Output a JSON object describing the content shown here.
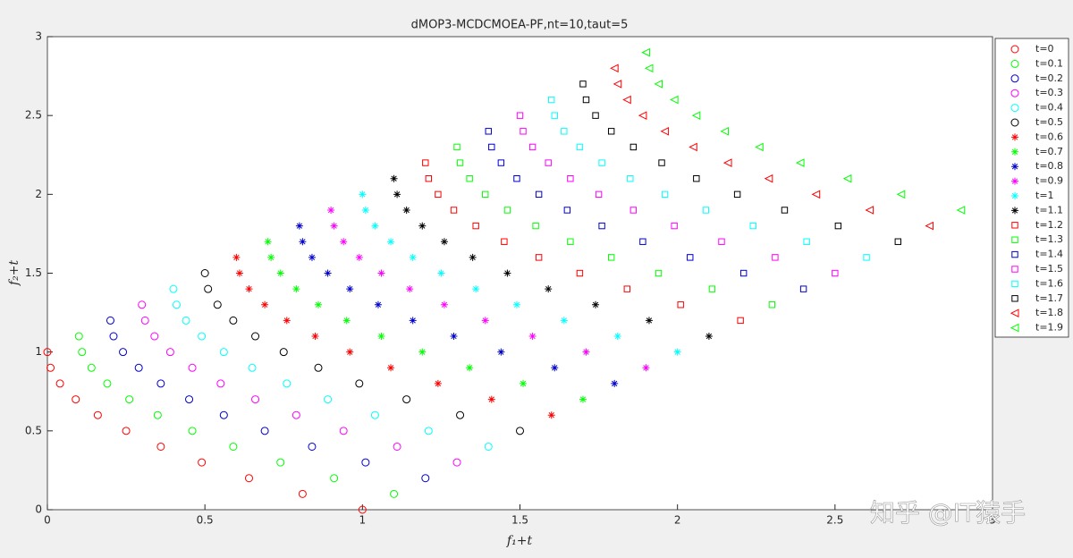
{
  "chart_data": {
    "type": "scatter",
    "title": "dMOP3-MCDCMOEA-PF,nt=10,taut=5",
    "xlabel": "f₁+t",
    "ylabel": "f₂+t",
    "watermark": "知乎 @IT猿手",
    "xlim": [
      0,
      3
    ],
    "ylim": [
      0,
      3
    ],
    "xticks": [
      0,
      0.5,
      1,
      1.5,
      2,
      2.5,
      3
    ],
    "yticks": [
      0,
      0.5,
      1,
      1.5,
      2,
      2.5,
      3
    ],
    "legend": "outside-right",
    "series": [
      {
        "name": "t=0",
        "color": "#ff0000",
        "marker": "o",
        "x": [
          0,
          0.01,
          0.04,
          0.09,
          0.16,
          0.25,
          0.36,
          0.49,
          0.64,
          0.81,
          1
        ],
        "values": [
          1,
          0.9,
          0.8,
          0.7,
          0.6,
          0.5,
          0.4,
          0.3,
          0.2,
          0.1,
          0
        ]
      },
      {
        "name": "t=0.1",
        "color": "#00ff00",
        "marker": "o",
        "x": [
          0.1,
          0.11,
          0.14,
          0.19,
          0.26,
          0.35,
          0.46,
          0.59,
          0.74,
          0.91,
          1.1
        ],
        "values": [
          1.1,
          1,
          0.9,
          0.8,
          0.7,
          0.6,
          0.5,
          0.4,
          0.3,
          0.2,
          0.1
        ]
      },
      {
        "name": "t=0.2",
        "color": "#0000cc",
        "marker": "o",
        "x": [
          0.2,
          0.21,
          0.24,
          0.29,
          0.36,
          0.45,
          0.56,
          0.69,
          0.84,
          1.01,
          1.2
        ],
        "values": [
          1.2,
          1.1,
          1,
          0.9,
          0.8,
          0.7,
          0.6,
          0.5,
          0.4,
          0.3,
          0.2
        ]
      },
      {
        "name": "t=0.3",
        "color": "#ff00ff",
        "marker": "o",
        "x": [
          0.3,
          0.31,
          0.34,
          0.39,
          0.46,
          0.55,
          0.66,
          0.79,
          0.94,
          1.11,
          1.3
        ],
        "values": [
          1.3,
          1.2,
          1.1,
          1,
          0.9,
          0.8,
          0.7,
          0.6,
          0.5,
          0.4,
          0.3
        ]
      },
      {
        "name": "t=0.4",
        "color": "#00ffff",
        "marker": "o",
        "x": [
          0.4,
          0.41,
          0.44,
          0.49,
          0.56,
          0.65,
          0.76,
          0.89,
          1.04,
          1.21,
          1.4
        ],
        "values": [
          1.4,
          1.3,
          1.2,
          1.1,
          1,
          0.9,
          0.8,
          0.7,
          0.6,
          0.5,
          0.4
        ]
      },
      {
        "name": "t=0.5",
        "color": "#000000",
        "marker": "o",
        "x": [
          0.5,
          0.51,
          0.54,
          0.59,
          0.66,
          0.75,
          0.86,
          0.99,
          1.14,
          1.31,
          1.5
        ],
        "values": [
          1.5,
          1.4,
          1.3,
          1.2,
          1.1,
          1,
          0.9,
          0.8,
          0.7,
          0.6,
          0.5
        ]
      },
      {
        "name": "t=0.6",
        "color": "#ff0000",
        "marker": "*",
        "x": [
          0.6,
          0.61,
          0.64,
          0.69,
          0.76,
          0.85,
          0.96,
          1.09,
          1.24,
          1.41,
          1.6
        ],
        "values": [
          1.6,
          1.5,
          1.4,
          1.3,
          1.2,
          1.1,
          1,
          0.9,
          0.8,
          0.7,
          0.6
        ]
      },
      {
        "name": "t=0.7",
        "color": "#00ff00",
        "marker": "*",
        "x": [
          0.7,
          0.71,
          0.74,
          0.79,
          0.86,
          0.95,
          1.06,
          1.19,
          1.34,
          1.51,
          1.7
        ],
        "values": [
          1.7,
          1.6,
          1.5,
          1.4,
          1.3,
          1.2,
          1.1,
          1,
          0.9,
          0.8,
          0.7
        ]
      },
      {
        "name": "t=0.8",
        "color": "#0000cc",
        "marker": "*",
        "x": [
          0.8,
          0.81,
          0.84,
          0.89,
          0.96,
          1.05,
          1.16,
          1.29,
          1.44,
          1.61,
          1.8
        ],
        "values": [
          1.8,
          1.7,
          1.6,
          1.5,
          1.4,
          1.3,
          1.2,
          1.1,
          1,
          0.9,
          0.8
        ]
      },
      {
        "name": "t=0.9",
        "color": "#ff00ff",
        "marker": "*",
        "x": [
          0.9,
          0.91,
          0.94,
          0.99,
          1.06,
          1.15,
          1.26,
          1.39,
          1.54,
          1.71,
          1.9
        ],
        "values": [
          1.9,
          1.8,
          1.7,
          1.6,
          1.5,
          1.4,
          1.3,
          1.2,
          1.1,
          1,
          0.9
        ]
      },
      {
        "name": "t=1",
        "color": "#00ffff",
        "marker": "*",
        "x": [
          1,
          1.01,
          1.04,
          1.09,
          1.16,
          1.25,
          1.36,
          1.49,
          1.64,
          1.81,
          2
        ],
        "values": [
          2,
          1.9,
          1.8,
          1.7,
          1.6,
          1.5,
          1.4,
          1.3,
          1.2,
          1.1,
          1
        ]
      },
      {
        "name": "t=1.1",
        "color": "#000000",
        "marker": "*",
        "x": [
          1.1,
          1.11,
          1.14,
          1.19,
          1.26,
          1.35,
          1.46,
          1.59,
          1.74,
          1.91,
          2.1
        ],
        "values": [
          2.1,
          2,
          1.9,
          1.8,
          1.7,
          1.6,
          1.5,
          1.4,
          1.3,
          1.2,
          1.1
        ]
      },
      {
        "name": "t=1.2",
        "color": "#ff0000",
        "marker": "s",
        "x": [
          1.2,
          1.21,
          1.24,
          1.29,
          1.36,
          1.45,
          1.56,
          1.69,
          1.84,
          2.01,
          2.2
        ],
        "values": [
          2.2,
          2.1,
          2,
          1.9,
          1.8,
          1.7,
          1.6,
          1.5,
          1.4,
          1.3,
          1.2
        ]
      },
      {
        "name": "t=1.3",
        "color": "#00ff00",
        "marker": "s",
        "x": [
          1.3,
          1.31,
          1.34,
          1.39,
          1.46,
          1.55,
          1.66,
          1.79,
          1.94,
          2.11,
          2.3
        ],
        "values": [
          2.3,
          2.2,
          2.1,
          2,
          1.9,
          1.8,
          1.7,
          1.6,
          1.5,
          1.4,
          1.3
        ]
      },
      {
        "name": "t=1.4",
        "color": "#0000cc",
        "marker": "s",
        "x": [
          1.4,
          1.41,
          1.44,
          1.49,
          1.56,
          1.65,
          1.76,
          1.89,
          2.04,
          2.21,
          2.4
        ],
        "values": [
          2.4,
          2.3,
          2.2,
          2.1,
          2,
          1.9,
          1.8,
          1.7,
          1.6,
          1.5,
          1.4
        ]
      },
      {
        "name": "t=1.5",
        "color": "#ff00ff",
        "marker": "s",
        "x": [
          1.5,
          1.51,
          1.54,
          1.59,
          1.66,
          1.75,
          1.86,
          1.99,
          2.14,
          2.31,
          2.5
        ],
        "values": [
          2.5,
          2.4,
          2.3,
          2.2,
          2.1,
          2,
          1.9,
          1.8,
          1.7,
          1.6,
          1.5
        ]
      },
      {
        "name": "t=1.6",
        "color": "#00ffff",
        "marker": "s",
        "x": [
          1.6,
          1.61,
          1.64,
          1.69,
          1.76,
          1.85,
          1.96,
          2.09,
          2.24,
          2.41,
          2.6
        ],
        "values": [
          2.6,
          2.5,
          2.4,
          2.3,
          2.2,
          2.1,
          2,
          1.9,
          1.8,
          1.7,
          1.6
        ]
      },
      {
        "name": "t=1.7",
        "color": "#000000",
        "marker": "s",
        "x": [
          1.7,
          1.71,
          1.74,
          1.79,
          1.86,
          1.95,
          2.06,
          2.19,
          2.34,
          2.51,
          2.7
        ],
        "values": [
          2.7,
          2.6,
          2.5,
          2.4,
          2.3,
          2.2,
          2.1,
          2,
          1.9,
          1.8,
          1.7
        ]
      },
      {
        "name": "t=1.8",
        "color": "#ff0000",
        "marker": "<",
        "x": [
          1.8,
          1.81,
          1.84,
          1.89,
          1.96,
          2.05,
          2.16,
          2.29,
          2.44,
          2.61,
          2.8
        ],
        "values": [
          2.8,
          2.7,
          2.6,
          2.5,
          2.4,
          2.3,
          2.2,
          2.1,
          2,
          1.9,
          1.8
        ]
      },
      {
        "name": "t=1.9",
        "color": "#00ff00",
        "marker": "<",
        "x": [
          1.9,
          1.91,
          1.94,
          1.99,
          2.06,
          2.15,
          2.26,
          2.39,
          2.54,
          2.71,
          2.9
        ],
        "values": [
          2.9,
          2.8,
          2.7,
          2.6,
          2.5,
          2.4,
          2.3,
          2.2,
          2.1,
          2,
          1.9
        ]
      }
    ]
  }
}
